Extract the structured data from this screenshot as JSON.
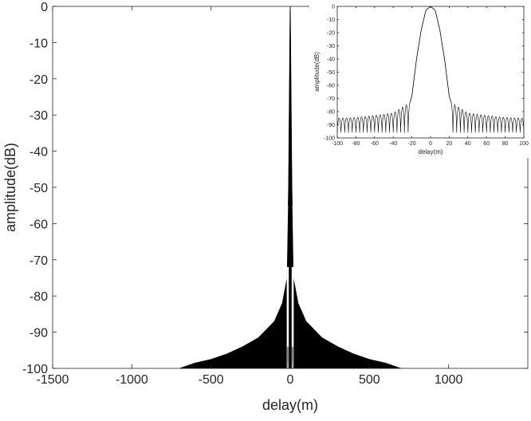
{
  "chart_data": [
    {
      "type": "line",
      "title": "",
      "xlabel": "delay(m)",
      "ylabel": "amplitude(dB)",
      "xlim": [
        -1500,
        1500
      ],
      "ylim": [
        -100,
        0
      ],
      "xticks": [
        -1500,
        -1000,
        -500,
        0,
        500,
        1000
      ],
      "yticks": [
        0,
        -10,
        -20,
        -30,
        -40,
        -50,
        -60,
        -70,
        -80,
        -90,
        -100
      ],
      "grid": false,
      "legend": "none",
      "line_color": "#000000",
      "series": [
        {
          "x": [
            -1500,
            -700,
            -600,
            -500,
            -400,
            -300,
            -200,
            -100,
            -50,
            -20,
            -10,
            0,
            10,
            20,
            50,
            100,
            200,
            300,
            400,
            500,
            600,
            700,
            1500
          ],
          "y": [
            -100,
            -100,
            -98.5,
            -97.5,
            -96,
            -94,
            -91.5,
            -87,
            -82,
            -75,
            -50,
            0,
            -50,
            -75,
            -82,
            -87,
            -91.5,
            -94,
            -96,
            -97.5,
            -98.5,
            -100,
            -100
          ]
        }
      ],
      "envelope_note": "dense sidelobe fill between envelope and -100 dB"
    },
    {
      "type": "line",
      "title": "",
      "xlabel": "delay(m)",
      "ylabel": "amplitude(dB)",
      "xlim": [
        -100,
        100
      ],
      "ylim": [
        -100,
        0
      ],
      "xticks": [
        -100,
        -80,
        -60,
        -40,
        -20,
        0,
        20,
        40,
        60,
        80,
        100
      ],
      "yticks": [
        0,
        -10,
        -20,
        -30,
        -40,
        -50,
        -60,
        -70,
        -80,
        -90,
        -100
      ],
      "grid": false,
      "legend": "none",
      "line_color": "#000000",
      "series": [
        {
          "x": [
            -100,
            -80,
            -60,
            -40,
            -22,
            -20,
            -15,
            -10,
            -5,
            0,
            5,
            10,
            15,
            20,
            22,
            40,
            60,
            80,
            100
          ],
          "y": [
            -85,
            -84.5,
            -83,
            -81,
            -73,
            -68,
            -40,
            -18,
            -3,
            0,
            -3,
            -18,
            -40,
            -68,
            -73,
            -81,
            -83,
            -84.5,
            -85
          ]
        }
      ],
      "sidelobe_period_m": 4,
      "sidelobe_floor_db": -96
    }
  ]
}
